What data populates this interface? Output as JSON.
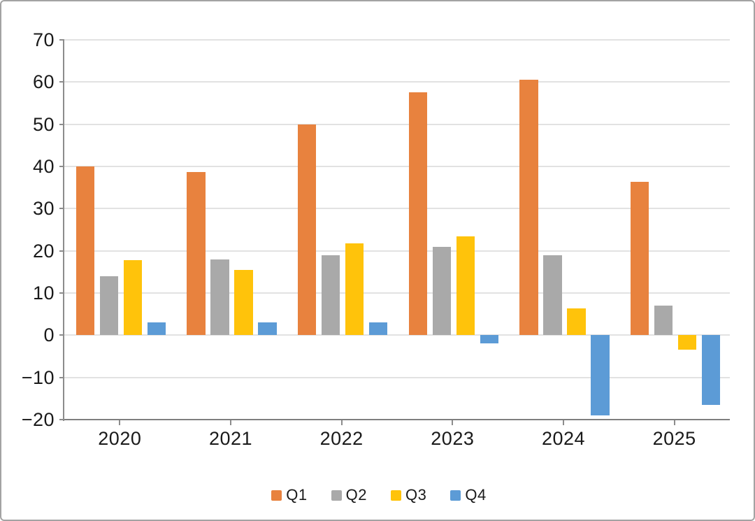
{
  "chart": {
    "y_tick_values": [
      70,
      60,
      50,
      40,
      30,
      20,
      10,
      0,
      -10,
      -20
    ],
    "y_tick_labels": [
      "70",
      "60",
      "50",
      "40",
      "30",
      "20",
      "10",
      "0",
      "−10",
      "−20"
    ]
  },
  "chart_data": {
    "type": "bar",
    "title": "",
    "xlabel": "",
    "ylabel": "",
    "categories": [
      "2020",
      "2021",
      "2022",
      "2023",
      "2024",
      "2025"
    ],
    "series": [
      {
        "name": "Q1",
        "color": "#E8823E",
        "values": [
          40.0,
          38.6,
          49.9,
          57.5,
          60.5,
          36.3
        ]
      },
      {
        "name": "Q2",
        "color": "#A9A9A9",
        "values": [
          14.0,
          18.0,
          19.0,
          21.0,
          19.0,
          7.0
        ]
      },
      {
        "name": "Q3",
        "color": "#FFC30B",
        "values": [
          17.8,
          15.5,
          21.7,
          23.4,
          6.3,
          -3.5
        ]
      },
      {
        "name": "Q4",
        "color": "#5C9BD6",
        "values": [
          3.0,
          3.0,
          3.0,
          -2.0,
          -19.0,
          -16.5
        ]
      }
    ],
    "ylim": [
      -20,
      70
    ],
    "ytick_step": 10,
    "grid": true,
    "legend_position": "bottom"
  },
  "colors": {
    "gridline": "#E2E2E2",
    "axis_line": "#8C8C8C",
    "bottom_axis_line": "#7F7F7F",
    "text": "#1A1A1A",
    "frame_border": "#A3A3A3",
    "background": "#FFFFFF"
  }
}
